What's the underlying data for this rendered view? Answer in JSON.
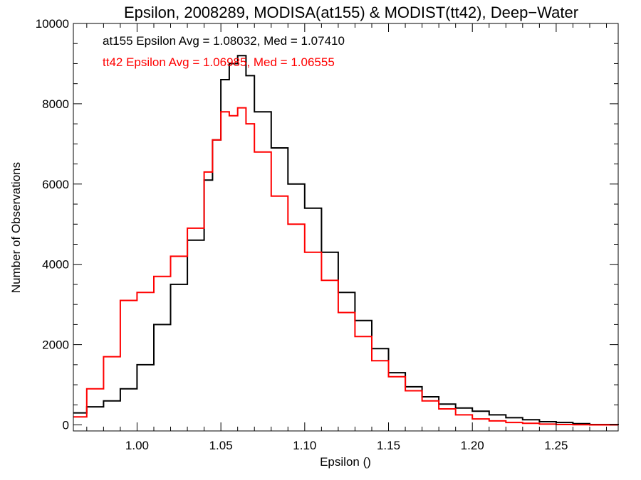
{
  "chart_data": {
    "type": "line",
    "step": true,
    "title": "Epsilon, 2008289, MODISA(at155) & MODIST(tt42), Deep−Water",
    "xlabel": "Epsilon ()",
    "ylabel": "Number of Observations",
    "xlim": [
      0.962,
      1.287
    ],
    "ylim": [
      -150,
      10000
    ],
    "x_ticks": [
      "1.00",
      "1.05",
      "1.10",
      "1.15",
      "1.20",
      "1.25"
    ],
    "y_ticks": [
      "0",
      "2000",
      "4000",
      "6000",
      "8000",
      "10000"
    ],
    "annotations": [
      {
        "text": "at155 Epsilon Avg = 1.08032, Med = 1.07410",
        "color": "#000000"
      },
      {
        "text": "tt42 Epsilon Avg = 1.06985, Med = 1.06555",
        "color": "#ff0000"
      }
    ],
    "series": [
      {
        "color": "#000000",
        "x": [
          0.962,
          0.97,
          0.98,
          0.99,
          1.0,
          1.01,
          1.02,
          1.03,
          1.04,
          1.045,
          1.05,
          1.055,
          1.06,
          1.065,
          1.07,
          1.08,
          1.09,
          1.1,
          1.11,
          1.12,
          1.13,
          1.14,
          1.15,
          1.16,
          1.17,
          1.18,
          1.19,
          1.2,
          1.21,
          1.22,
          1.23,
          1.24,
          1.25,
          1.26,
          1.27,
          1.287
        ],
        "y": [
          300,
          450,
          600,
          900,
          1500,
          2500,
          3500,
          4600,
          6100,
          7100,
          8600,
          9000,
          9200,
          8700,
          7800,
          6900,
          6000,
          5400,
          4300,
          3300,
          2600,
          1900,
          1300,
          950,
          700,
          520,
          420,
          340,
          250,
          180,
          130,
          80,
          60,
          30,
          10,
          0
        ]
      },
      {
        "color": "#ff0000",
        "x": [
          0.962,
          0.97,
          0.98,
          0.99,
          1.0,
          1.01,
          1.02,
          1.03,
          1.04,
          1.045,
          1.05,
          1.055,
          1.06,
          1.065,
          1.07,
          1.08,
          1.09,
          1.1,
          1.11,
          1.12,
          1.13,
          1.14,
          1.15,
          1.16,
          1.17,
          1.18,
          1.19,
          1.2,
          1.21,
          1.22,
          1.23,
          1.24,
          1.25,
          1.26,
          1.27,
          1.287
        ],
        "y": [
          200,
          900,
          1700,
          3100,
          3300,
          3700,
          4200,
          4900,
          6300,
          7100,
          7800,
          7700,
          7900,
          7500,
          6800,
          5700,
          5000,
          4300,
          3600,
          2800,
          2200,
          1600,
          1200,
          850,
          600,
          400,
          250,
          150,
          100,
          60,
          40,
          20,
          10,
          5,
          0,
          0
        ]
      }
    ]
  }
}
